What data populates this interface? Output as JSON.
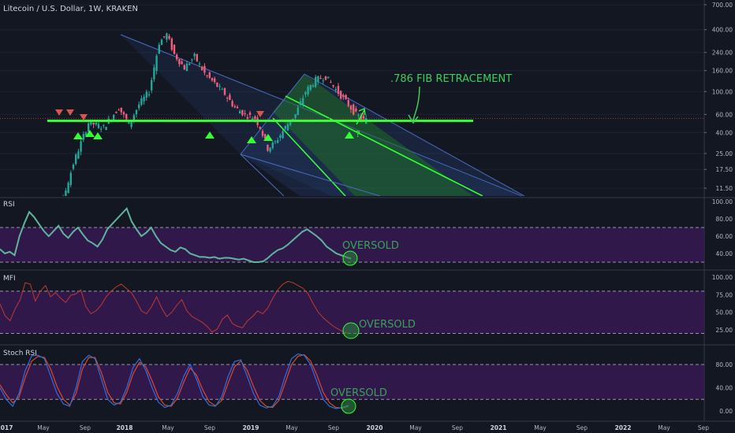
{
  "header": {
    "title": "Litecoin / U.S. Dollar, 1W, KRAKEN"
  },
  "colors": {
    "background": "#131722",
    "up_candle": "#26a69a",
    "down_candle": "#ef5f7a",
    "bright_green": "#33ff33",
    "channel_fill": "#2d4d8a",
    "band_fill": "#3b1a5a",
    "rsi_line": "#5fb59a",
    "mfi_line": "#c0392b",
    "stoch_k": "#2f6fdb",
    "stoch_d": "#e0462b",
    "axis_text": "#b2b5be",
    "annotation": "#3dcf5a"
  },
  "chart_data": [
    {
      "type": "candlestick",
      "panel": "price",
      "title": "Litecoin / U.S. Dollar, 1W, KRAKEN",
      "y_scale": "log",
      "y_ticks": [
        "700.00",
        "400.00",
        "240.00",
        "160.00",
        "100.00",
        "60.00",
        "40.00",
        "25.00",
        "17.50",
        "11.50"
      ],
      "x_ticks": [
        "2017",
        "May",
        "Sep",
        "2018",
        "May",
        "Sep",
        "2019",
        "May",
        "Sep",
        "2020",
        "May",
        "Sep",
        "2021",
        "May",
        "Sep",
        "2022",
        "May",
        "Sep"
      ],
      "x_range": [
        "2016-11",
        "2022-10"
      ],
      "price_path": [
        [
          0,
          4
        ],
        [
          8,
          4.1
        ],
        [
          16,
          20
        ],
        [
          22,
          50
        ],
        [
          28,
          45
        ],
        [
          34,
          70
        ],
        [
          38,
          48
        ],
        [
          42,
          75
        ],
        [
          46,
          100
        ],
        [
          50,
          300
        ],
        [
          53,
          360
        ],
        [
          56,
          230
        ],
        [
          60,
          170
        ],
        [
          64,
          220
        ],
        [
          68,
          150
        ],
        [
          72,
          120
        ],
        [
          76,
          95
        ],
        [
          80,
          70
        ],
        [
          84,
          60
        ],
        [
          88,
          55
        ],
        [
          90,
          45
        ],
        [
          93,
          28
        ],
        [
          96,
          32
        ],
        [
          100,
          45
        ],
        [
          104,
          60
        ],
        [
          108,
          100
        ],
        [
          112,
          130
        ],
        [
          116,
          140
        ],
        [
          120,
          105
        ],
        [
          124,
          80
        ],
        [
          128,
          60
        ],
        [
          131,
          53
        ]
      ],
      "support_line": {
        "price": 52,
        "color": "#33ff33"
      },
      "annotations": [
        {
          "text": ".786 FIB RETRACEMENT",
          "color": "#3dcf5a"
        },
        {
          "text": "?",
          "color": "#33ff33"
        }
      ],
      "markers": {
        "sell_arrows": 4,
        "buy_arrows": 7
      }
    },
    {
      "type": "line",
      "panel": "RSI",
      "name": "RSI",
      "y_ticks": [
        "100.00",
        "80.00",
        "60.00",
        "40.00"
      ],
      "bands": [
        70,
        30
      ],
      "label": "OVERSOLD",
      "values": [
        45,
        40,
        42,
        38,
        60,
        75,
        88,
        82,
        74,
        66,
        60,
        66,
        72,
        63,
        58,
        65,
        70,
        62,
        55,
        52,
        48,
        56,
        68,
        74,
        80,
        86,
        92,
        77,
        68,
        60,
        64,
        70,
        60,
        52,
        48,
        44,
        42,
        47,
        45,
        40,
        38,
        36,
        36,
        35,
        36,
        34,
        35,
        35,
        34,
        33,
        34,
        32,
        30,
        30,
        31,
        35,
        40,
        44,
        46,
        50,
        55,
        60,
        65,
        68,
        64,
        60,
        55,
        48,
        44,
        40,
        38,
        36,
        34
      ]
    },
    {
      "type": "line",
      "panel": "MFI",
      "name": "MFI",
      "y_ticks": [
        "100.00",
        "75.00",
        "50.00",
        "25.00"
      ],
      "bands": [
        80,
        20
      ],
      "label": "OVERSOLD",
      "values": [
        62,
        45,
        38,
        55,
        68,
        92,
        90,
        66,
        80,
        88,
        72,
        78,
        70,
        64,
        74,
        76,
        82,
        58,
        48,
        52,
        60,
        72,
        80,
        86,
        90,
        84,
        78,
        66,
        52,
        48,
        58,
        72,
        56,
        44,
        50,
        60,
        68,
        52,
        44,
        40,
        36,
        30,
        22,
        26,
        40,
        46,
        34,
        30,
        28,
        38,
        44,
        52,
        48,
        56,
        70,
        82,
        90,
        94,
        92,
        88,
        84,
        76,
        62,
        50,
        42,
        36,
        30,
        26,
        22,
        20
      ]
    },
    {
      "type": "line",
      "panel": "Stoch RSI",
      "name": "Stoch RSI",
      "y_ticks": [
        "80.00",
        "40.00",
        "0.00"
      ],
      "bands": [
        80,
        20
      ],
      "label": "OVERSOLD",
      "k_values": [
        40,
        20,
        8,
        30,
        70,
        95,
        96,
        90,
        60,
        30,
        12,
        8,
        40,
        85,
        96,
        90,
        55,
        20,
        10,
        15,
        40,
        75,
        90,
        70,
        40,
        15,
        6,
        10,
        30,
        60,
        80,
        55,
        25,
        10,
        8,
        25,
        60,
        85,
        88,
        60,
        30,
        10,
        5,
        8,
        25,
        60,
        90,
        98,
        96,
        80,
        50,
        20,
        8,
        4,
        6,
        10
      ],
      "d_values": [
        45,
        28,
        14,
        24,
        58,
        86,
        94,
        92,
        72,
        42,
        20,
        10,
        30,
        72,
        92,
        92,
        66,
        32,
        14,
        12,
        32,
        64,
        84,
        76,
        52,
        24,
        10,
        8,
        22,
        50,
        74,
        62,
        36,
        16,
        9,
        18,
        48,
        76,
        86,
        70,
        42,
        18,
        8,
        6,
        18,
        48,
        80,
        94,
        97,
        86,
        62,
        32,
        14,
        6,
        5,
        8
      ]
    }
  ]
}
